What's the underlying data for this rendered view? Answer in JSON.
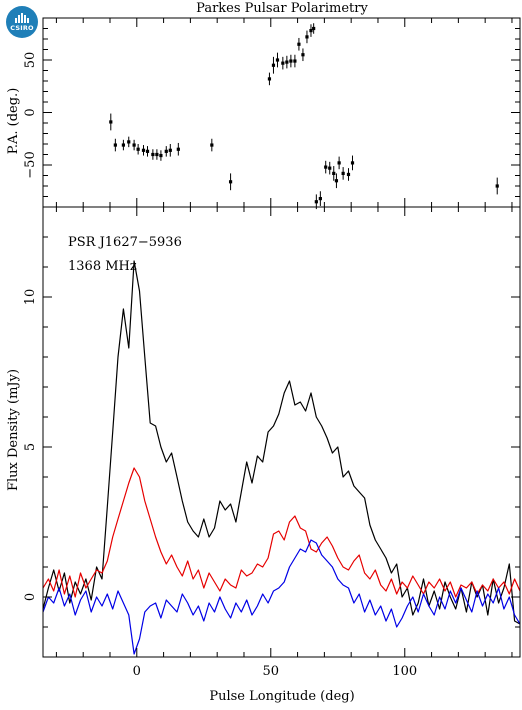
{
  "logo": {
    "text": "CSIRO",
    "icon": "csiro-logo-icon"
  },
  "title": "Parkes Pulsar Polarimetry",
  "annotations": {
    "psr": "PSR J1627−5936",
    "freq": "1368 MHz"
  },
  "colors": {
    "total": "#000000",
    "linear": "#e60000",
    "circular": "#0000e6",
    "axis": "#000000"
  },
  "chart_data": [
    {
      "type": "scatter",
      "panel": "position-angle",
      "ylabel": "P.A. (deg.)",
      "xlim": [
        -35,
        143
      ],
      "ylim": [
        -90,
        90
      ],
      "yticks": [
        -50,
        0,
        50
      ],
      "points": [
        [
          -9.7,
          -9,
          8
        ],
        [
          -8,
          -31,
          6
        ],
        [
          -5,
          -31,
          5
        ],
        [
          -3,
          -28,
          5
        ],
        [
          -1,
          -31,
          5
        ],
        [
          0.5,
          -35,
          5
        ],
        [
          2.5,
          -36,
          5
        ],
        [
          4,
          -37,
          5
        ],
        [
          6,
          -40,
          5
        ],
        [
          7.5,
          -40,
          5
        ],
        [
          9,
          -41,
          5
        ],
        [
          11,
          -37,
          5
        ],
        [
          12.5,
          -36,
          6
        ],
        [
          15.5,
          -35,
          6
        ],
        [
          28,
          -31,
          6
        ],
        [
          35,
          -66,
          8
        ],
        [
          49.5,
          32,
          6
        ],
        [
          51,
          45,
          8
        ],
        [
          52.5,
          50,
          7
        ],
        [
          54.5,
          47,
          6
        ],
        [
          56,
          48,
          6
        ],
        [
          57.5,
          49,
          6
        ],
        [
          59,
          49,
          6
        ],
        [
          60.5,
          65,
          6
        ],
        [
          62,
          55,
          6
        ],
        [
          63.5,
          72,
          6
        ],
        [
          65,
          78,
          6
        ],
        [
          66,
          80,
          5
        ],
        [
          67,
          -85,
          7
        ],
        [
          68.5,
          -82,
          7
        ],
        [
          70.5,
          -52,
          6
        ],
        [
          72,
          -53,
          6
        ],
        [
          73.5,
          -58,
          7
        ],
        [
          74.5,
          -65,
          7
        ],
        [
          75.5,
          -48,
          6
        ],
        [
          77,
          -58,
          6
        ],
        [
          79,
          -59,
          6
        ],
        [
          80.5,
          -48,
          7
        ],
        [
          134.5,
          -70,
          8
        ]
      ]
    },
    {
      "type": "line",
      "panel": "flux-profile",
      "xlabel": "Pulse Longitude (deg)",
      "ylabel": "Flux Density (mJy)",
      "xlim": [
        -35,
        143
      ],
      "ylim": [
        -2,
        13
      ],
      "xticks": [
        0,
        50,
        100
      ],
      "yticks": [
        0,
        5,
        10
      ],
      "x": [
        -35,
        -33,
        -31,
        -29,
        -27,
        -25,
        -23,
        -21,
        -19,
        -17,
        -15,
        -13,
        -11,
        -9,
        -7,
        -5,
        -3,
        -1,
        1,
        3,
        5,
        7,
        9,
        11,
        13,
        15,
        17,
        19,
        21,
        23,
        25,
        27,
        29,
        31,
        33,
        35,
        37,
        39,
        41,
        43,
        45,
        47,
        49,
        51,
        53,
        55,
        57,
        59,
        61,
        63,
        65,
        67,
        69,
        71,
        73,
        75,
        77,
        79,
        81,
        83,
        85,
        87,
        89,
        91,
        93,
        95,
        97,
        99,
        101,
        103,
        105,
        107,
        109,
        111,
        113,
        115,
        117,
        119,
        121,
        123,
        125,
        127,
        129,
        131,
        133,
        135,
        137,
        139,
        141,
        143
      ],
      "series": [
        {
          "color": "#000000",
          "values": [
            -0.4,
            0.3,
            0.9,
            0.2,
            0.8,
            -0.2,
            0.5,
            0.1,
            0.6,
            -0.1,
            1.0,
            0.6,
            3.0,
            5.5,
            8.0,
            9.6,
            8.3,
            11.2,
            10.2,
            8.0,
            5.8,
            5.7,
            5.0,
            4.5,
            4.8,
            4.0,
            3.2,
            2.5,
            2.2,
            2.0,
            2.6,
            2.0,
            2.3,
            3.2,
            2.9,
            3.1,
            2.5,
            3.5,
            4.5,
            3.8,
            4.7,
            4.5,
            5.5,
            5.7,
            6.1,
            6.8,
            7.2,
            6.4,
            6.5,
            6.2,
            6.8,
            6.0,
            5.7,
            5.3,
            4.8,
            5.0,
            4.0,
            4.2,
            3.7,
            3.5,
            3.3,
            2.4,
            1.9,
            1.6,
            1.3,
            0.8,
            1.1,
            0.0,
            0.3,
            -0.6,
            -0.2,
            0.6,
            -0.3,
            0.2,
            -0.4,
            0.5,
            0.0,
            -0.4,
            0.3,
            -0.5,
            0.5,
            0.0,
            0.4,
            -0.6,
            0.6,
            -0.2,
            0.3,
            1.1,
            -0.8,
            -0.9
          ]
        },
        {
          "color": "#e60000",
          "values": [
            0.3,
            0.6,
            0.2,
            0.9,
            0.1,
            0.7,
            0.0,
            0.8,
            0.3,
            0.6,
            0.9,
            0.8,
            1.2,
            2.0,
            2.6,
            3.2,
            3.8,
            4.3,
            4.0,
            3.2,
            2.6,
            2.0,
            1.5,
            1.1,
            1.4,
            1.0,
            0.7,
            1.2,
            0.6,
            0.9,
            0.3,
            0.8,
            0.5,
            0.2,
            0.6,
            0.4,
            0.3,
            0.9,
            0.7,
            0.8,
            1.1,
            1.0,
            1.3,
            2.1,
            2.2,
            1.9,
            2.5,
            2.7,
            2.3,
            2.2,
            1.6,
            1.5,
            1.8,
            2.0,
            1.7,
            1.3,
            1.0,
            0.9,
            1.2,
            1.4,
            0.8,
            0.6,
            0.9,
            0.4,
            0.2,
            0.6,
            0.1,
            0.5,
            0.3,
            0.7,
            0.4,
            0.1,
            0.5,
            0.3,
            0.6,
            0.2,
            0.5,
            0.0,
            0.4,
            0.3,
            0.5,
            0.1,
            0.4,
            0.2,
            0.6,
            0.3,
            0.5,
            0.1,
            0.6,
            0.2
          ]
        },
        {
          "color": "#0000e6",
          "values": [
            -0.5,
            0.0,
            -0.2,
            0.3,
            -0.3,
            0.1,
            -0.6,
            -0.1,
            0.2,
            -0.5,
            0.0,
            -0.3,
            0.1,
            -0.4,
            0.2,
            -0.2,
            -0.6,
            -1.9,
            -1.4,
            -0.5,
            -0.3,
            -0.2,
            -0.7,
            -0.1,
            -0.3,
            -0.5,
            0.1,
            -0.2,
            -0.6,
            -0.3,
            -0.8,
            -0.2,
            -0.5,
            0.0,
            -0.4,
            -0.7,
            -0.2,
            -0.5,
            -0.1,
            -0.6,
            -0.3,
            0.1,
            -0.2,
            0.2,
            0.3,
            0.5,
            1.0,
            1.3,
            1.6,
            1.5,
            1.9,
            1.8,
            1.4,
            1.2,
            1.0,
            0.6,
            0.4,
            0.3,
            -0.2,
            0.1,
            -0.5,
            -0.1,
            -0.6,
            -0.3,
            -0.8,
            -0.4,
            -1.0,
            -0.7,
            -0.3,
            0.0,
            -0.5,
            0.1,
            -0.3,
            -0.6,
            0.0,
            -0.4,
            0.2,
            -0.2,
            0.3,
            -0.1,
            -0.5,
            0.2,
            -0.3,
            0.1,
            -0.2,
            0.3,
            -0.4,
            0.0,
            -0.6,
            -0.9
          ]
        }
      ]
    }
  ]
}
